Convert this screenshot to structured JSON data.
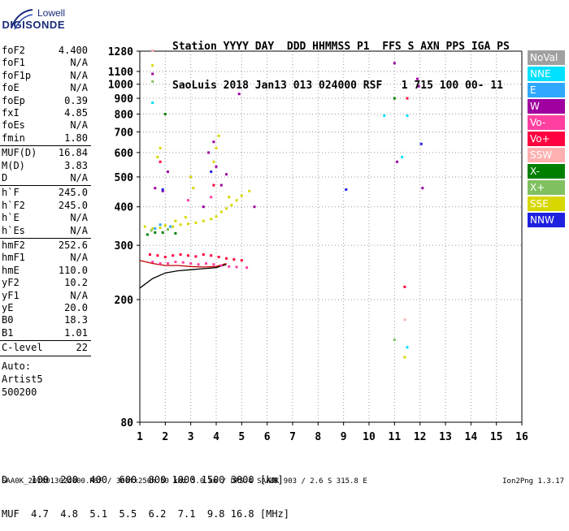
{
  "logo": {
    "line1": "Lowell",
    "line2": "DIGISONDE"
  },
  "header": {
    "line1": "Station YYYY DAY  DDD HHMMSS P1  FFS S AXN PPS IGA PS",
    "line2": "SaoLuis 2018 Jan13 013 024000 RSF   1 715 100 00- 11"
  },
  "params": [
    {
      "k": "foF2",
      "v": "4.400"
    },
    {
      "k": "foF1",
      "v": "N/A"
    },
    {
      "k": "foF1p",
      "v": "N/A"
    },
    {
      "k": "foE",
      "v": "N/A"
    },
    {
      "k": "foEp",
      "v": "0.39"
    },
    {
      "k": "fxI",
      "v": "4.85"
    },
    {
      "k": "foEs",
      "v": "N/A"
    },
    {
      "k": "fmin",
      "v": "1.80"
    },
    {
      "k": "MUF(D)",
      "v": "16.84"
    },
    {
      "k": "M(D)",
      "v": "3.83"
    },
    {
      "k": "D",
      "v": "N/A"
    },
    {
      "k": "h`F",
      "v": "245.0"
    },
    {
      "k": "h`F2",
      "v": "245.0"
    },
    {
      "k": "h`E",
      "v": "N/A"
    },
    {
      "k": "h`Es",
      "v": "N/A"
    },
    {
      "k": "hmF2",
      "v": "252.6"
    },
    {
      "k": "hmF1",
      "v": "N/A"
    },
    {
      "k": "hmE",
      "v": "110.0"
    },
    {
      "k": "yF2",
      "v": "10.2"
    },
    {
      "k": "yF1",
      "v": "N/A"
    },
    {
      "k": "yE",
      "v": "20.0"
    },
    {
      "k": "B0",
      "v": "18.3"
    },
    {
      "k": "B1",
      "v": "1.01"
    },
    {
      "k": "C-level",
      "v": "22"
    }
  ],
  "auto": [
    "Auto:",
    "Artist5",
    "500200"
  ],
  "legend": [
    {
      "label": "NoVal",
      "color": "#a0a0a0"
    },
    {
      "label": "NNE",
      "color": "#00e0ff"
    },
    {
      "label": "E",
      "color": "#30a8ff"
    },
    {
      "label": "W",
      "color": "#a000a0"
    },
    {
      "label": "Vo-",
      "color": "#ff40a0"
    },
    {
      "label": "Vo+",
      "color": "#ff0040"
    },
    {
      "label": "SSW",
      "color": "#ffb0b0"
    },
    {
      "label": "X-",
      "color": "#008000"
    },
    {
      "label": "X+",
      "color": "#80c060"
    },
    {
      "label": "SSE",
      "color": "#d8d800"
    },
    {
      "label": "NNW",
      "color": "#2020e0"
    }
  ],
  "bottom": {
    "line1": "D    100  200  400  600  800 1000 1500 3000 [km]",
    "line2": "MUF  4.7  4.8  5.1  5.5  6.2  7.1  9.8 16.8 [MHz]"
  },
  "footer": "SAA0K_2018013024000.RSF / 300fx256h 50 kHz 5.0 km / DPS-4 SAA0K 903 / 2.6 S 315.8 E",
  "version": "Ion2Png 1.3.17",
  "chart_data": {
    "type": "scatter",
    "title": "",
    "xlabel": "",
    "ylabel": "",
    "xlim": [
      1,
      16
    ],
    "ylim": [
      80,
      1280
    ],
    "y_scale": "log",
    "x_ticks": [
      1,
      2,
      3,
      4,
      5,
      6,
      7,
      8,
      9,
      10,
      11,
      12,
      13,
      14,
      15,
      16
    ],
    "y_ticks": [
      80,
      200,
      300,
      400,
      500,
      600,
      700,
      800,
      900,
      1000,
      1100,
      1280
    ],
    "grid": true,
    "legend_position": "right",
    "series": [
      {
        "name": "SSE",
        "color": "#d8d800",
        "points": [
          [
            1.2,
            345
          ],
          [
            1.5,
            340
          ],
          [
            1.8,
            342
          ],
          [
            2.0,
            348
          ],
          [
            2.3,
            345
          ],
          [
            2.6,
            350
          ],
          [
            2.9,
            352
          ],
          [
            3.2,
            355
          ],
          [
            3.5,
            360
          ],
          [
            3.8,
            365
          ],
          [
            4.0,
            372
          ],
          [
            4.2,
            385
          ],
          [
            4.4,
            395
          ],
          [
            4.6,
            405
          ],
          [
            4.8,
            420
          ],
          [
            5.0,
            435
          ],
          [
            5.3,
            450
          ],
          [
            3.9,
            560
          ],
          [
            4.0,
            620
          ],
          [
            4.1,
            680
          ],
          [
            1.7,
            580
          ],
          [
            1.8,
            620
          ],
          [
            3.0,
            500
          ],
          [
            3.1,
            460
          ],
          [
            4.5,
            430
          ],
          [
            2.4,
            360
          ],
          [
            2.8,
            370
          ],
          [
            1.5,
            1150
          ],
          [
            11.4,
            130
          ]
        ]
      },
      {
        "name": "Vo+",
        "color": "#ff0040",
        "points": [
          [
            1.4,
            280
          ],
          [
            1.7,
            278
          ],
          [
            2.0,
            275
          ],
          [
            2.3,
            278
          ],
          [
            2.6,
            280
          ],
          [
            2.9,
            278
          ],
          [
            3.2,
            276
          ],
          [
            3.5,
            280
          ],
          [
            3.8,
            278
          ],
          [
            4.1,
            275
          ],
          [
            4.4,
            272
          ],
          [
            4.7,
            270
          ],
          [
            5.0,
            268
          ],
          [
            1.8,
            560
          ],
          [
            3.9,
            470
          ],
          [
            11.4,
            220
          ],
          [
            11.5,
            900
          ]
        ]
      },
      {
        "name": "Vo-",
        "color": "#ff40a0",
        "points": [
          [
            1.5,
            265
          ],
          [
            1.8,
            262
          ],
          [
            2.1,
            262
          ],
          [
            2.4,
            265
          ],
          [
            2.7,
            264
          ],
          [
            3.0,
            262
          ],
          [
            3.3,
            260
          ],
          [
            3.6,
            262
          ],
          [
            3.9,
            260
          ],
          [
            4.2,
            258
          ],
          [
            4.5,
            256
          ],
          [
            4.8,
            255
          ],
          [
            5.2,
            254
          ],
          [
            3.8,
            430
          ],
          [
            2.9,
            420
          ]
        ]
      },
      {
        "name": "W",
        "color": "#a000a0",
        "points": [
          [
            1.6,
            460
          ],
          [
            1.9,
            450
          ],
          [
            2.1,
            520
          ],
          [
            3.7,
            600
          ],
          [
            3.9,
            650
          ],
          [
            4.0,
            540
          ],
          [
            4.2,
            470
          ],
          [
            4.4,
            510
          ],
          [
            3.5,
            400
          ],
          [
            1.5,
            1080
          ],
          [
            11.0,
            1170
          ],
          [
            11.9,
            1040
          ],
          [
            11.95,
            985
          ],
          [
            12.1,
            460
          ],
          [
            11.1,
            560
          ],
          [
            5.5,
            400
          ],
          [
            4.9,
            930
          ]
        ]
      },
      {
        "name": "NNW",
        "color": "#2020e0",
        "points": [
          [
            9.1,
            455
          ],
          [
            12.05,
            640
          ],
          [
            1.9,
            455
          ],
          [
            3.8,
            520
          ]
        ]
      },
      {
        "name": "NNE",
        "color": "#00e0ff",
        "points": [
          [
            10.6,
            790
          ],
          [
            11.5,
            790
          ],
          [
            11.3,
            580
          ],
          [
            11.5,
            140
          ],
          [
            1.5,
            870
          ]
        ]
      },
      {
        "name": "E",
        "color": "#30a8ff",
        "points": [
          [
            1.6,
            340
          ],
          [
            2.2,
            345
          ],
          [
            1.8,
            350
          ]
        ]
      },
      {
        "name": "X-",
        "color": "#008000",
        "points": [
          [
            1.3,
            325
          ],
          [
            1.6,
            330
          ],
          [
            1.9,
            330
          ],
          [
            2.4,
            328
          ],
          [
            11.0,
            900
          ],
          [
            2.0,
            800
          ]
        ]
      },
      {
        "name": "X+",
        "color": "#80c060",
        "points": [
          [
            1.45,
            335
          ],
          [
            2.1,
            338
          ],
          [
            11.0,
            148
          ],
          [
            1.5,
            1020
          ]
        ]
      },
      {
        "name": "SSW",
        "color": "#ffb0b0",
        "points": [
          [
            11.4,
            172
          ],
          [
            1.5,
            1285
          ]
        ]
      }
    ]
  }
}
